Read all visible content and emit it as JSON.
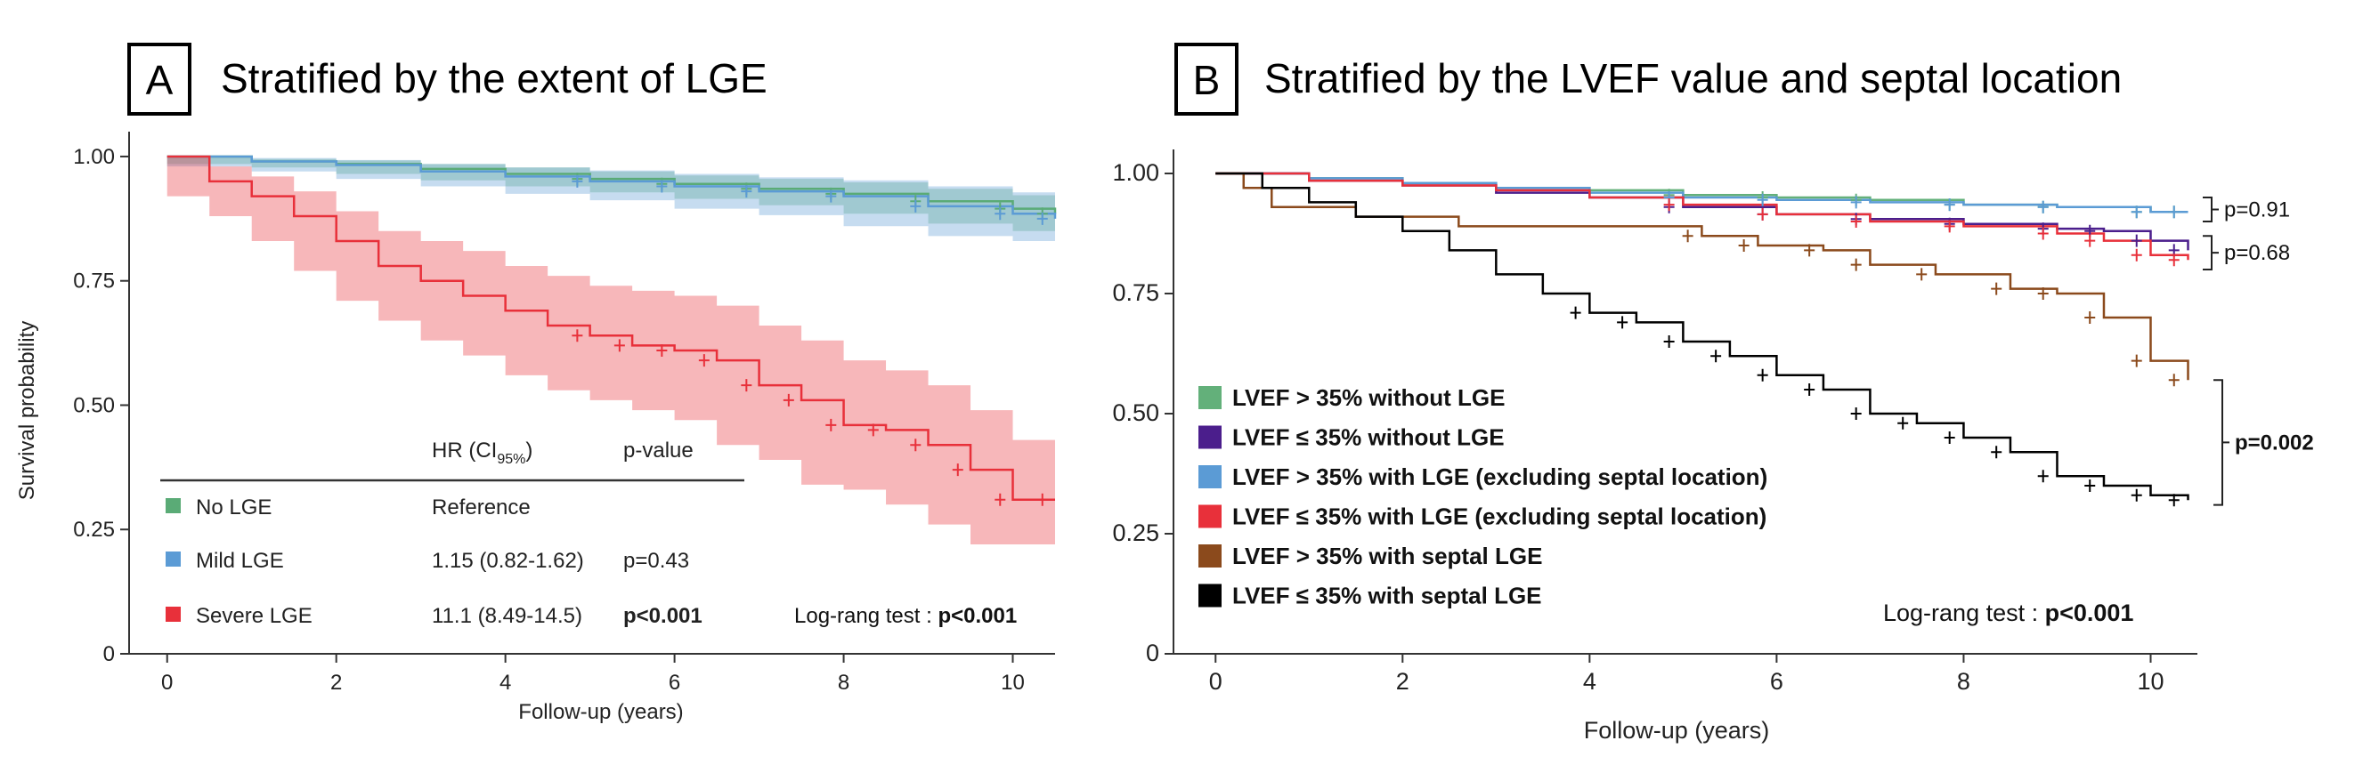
{
  "panels": {
    "a": {
      "letter": "A",
      "title": "Stratified by the extent of LGE"
    },
    "b": {
      "letter": "B",
      "title": "Stratified by the LVEF value and septal location"
    }
  },
  "colors": {
    "no_lge": "#5aab76",
    "mild_lge": "#5b9bd5",
    "severe_lge": "#e8303a",
    "lvef_gt35_no": "#63b07a",
    "lvef_le35_no": "#4b1e8c",
    "lvef_gt35_lge": "#5b9bd5",
    "lvef_le35_lge": "#e8303a",
    "lvef_gt35_septal": "#8b4a1c",
    "lvef_le35_septal": "#000000"
  },
  "chart_data": [
    {
      "type": "line",
      "subtype": "kaplan-meier",
      "title": "Stratified by the extent of LGE",
      "xlabel": "Follow-up  (years)",
      "ylabel": "Survival probability",
      "xlim": [
        -0.45,
        10.5
      ],
      "ylim": [
        0,
        1.05
      ],
      "x_ticks": [
        0,
        2,
        4,
        6,
        8,
        10
      ],
      "y_ticks": [
        0,
        0.25,
        0.5,
        0.75,
        1.0
      ],
      "y_tick_labels": [
        "0",
        "0.25",
        "0.50",
        "0.75",
        "1.00"
      ],
      "grid": false,
      "series": [
        {
          "name": "No  LGE",
          "color_key": "no_lge",
          "x": [
            0,
            1,
            2,
            3,
            4,
            5,
            6,
            7,
            8,
            9,
            10,
            10.5
          ],
          "y": [
            1.0,
            0.99,
            0.985,
            0.975,
            0.965,
            0.955,
            0.945,
            0.935,
            0.925,
            0.91,
            0.895,
            0.885
          ],
          "ci_low": [
            1.0,
            0.985,
            0.978,
            0.965,
            0.952,
            0.94,
            0.928,
            0.915,
            0.902,
            0.885,
            0.865,
            0.85
          ],
          "ci_high": [
            1.0,
            0.995,
            0.992,
            0.985,
            0.978,
            0.97,
            0.962,
            0.955,
            0.948,
            0.935,
            0.922,
            0.915
          ]
        },
        {
          "name": "Mild LGE",
          "color_key": "mild_lge",
          "x": [
            0,
            1,
            2,
            3,
            4,
            5,
            6,
            7,
            8,
            9,
            10,
            10.5
          ],
          "y": [
            1.0,
            0.99,
            0.983,
            0.97,
            0.96,
            0.95,
            0.94,
            0.93,
            0.92,
            0.9,
            0.885,
            0.875
          ],
          "ci_low": [
            1.0,
            0.98,
            0.97,
            0.955,
            0.94,
            0.925,
            0.912,
            0.895,
            0.882,
            0.86,
            0.84,
            0.83
          ],
          "ci_high": [
            1.0,
            0.997,
            0.993,
            0.985,
            0.978,
            0.972,
            0.965,
            0.958,
            0.952,
            0.94,
            0.928,
            0.92
          ]
        },
        {
          "name": "Severe LGE",
          "color_key": "severe_lge",
          "x": [
            0,
            0.5,
            1,
            1.5,
            2,
            2.5,
            3,
            3.5,
            4,
            4.5,
            5,
            5.5,
            6,
            6.5,
            7,
            7.5,
            8,
            8.5,
            9,
            9.5,
            10,
            10.5
          ],
          "y": [
            1.0,
            0.95,
            0.92,
            0.88,
            0.83,
            0.78,
            0.75,
            0.72,
            0.69,
            0.66,
            0.64,
            0.62,
            0.61,
            0.59,
            0.54,
            0.51,
            0.46,
            0.45,
            0.42,
            0.37,
            0.31,
            0.31
          ],
          "ci_low": [
            1.0,
            0.92,
            0.88,
            0.83,
            0.77,
            0.71,
            0.67,
            0.63,
            0.6,
            0.56,
            0.53,
            0.51,
            0.49,
            0.47,
            0.42,
            0.39,
            0.34,
            0.33,
            0.3,
            0.26,
            0.22,
            0.22
          ],
          "ci_high": [
            1.0,
            0.98,
            0.96,
            0.93,
            0.89,
            0.85,
            0.83,
            0.81,
            0.78,
            0.76,
            0.74,
            0.73,
            0.72,
            0.7,
            0.66,
            0.63,
            0.59,
            0.57,
            0.54,
            0.49,
            0.43,
            0.43
          ]
        }
      ],
      "table": {
        "header": [
          "",
          "HR (CI95%)",
          "p-value"
        ],
        "rows": [
          {
            "group": "No  LGE",
            "hr": "Reference",
            "p": "",
            "color_key": "no_lge"
          },
          {
            "group": "Mild LGE",
            "hr": "1.15 (0.82-1.62)",
            "p": "p=0.43",
            "color_key": "mild_lge"
          },
          {
            "group": "Severe LGE",
            "hr": "11.1 (8.49-14.5)",
            "p": "p<0.001",
            "color_key": "severe_lge"
          }
        ]
      },
      "test_note": {
        "label": "Log-rang test : ",
        "value": "p<0.001"
      }
    },
    {
      "type": "line",
      "subtype": "kaplan-meier",
      "title": "Stratified by the LVEF value and septal location",
      "xlabel": "Follow-up  (years)",
      "ylabel": "",
      "xlim": [
        -0.45,
        10.5
      ],
      "ylim": [
        0,
        1.05
      ],
      "x_ticks": [
        0,
        2,
        4,
        6,
        8,
        10
      ],
      "y_ticks": [
        0,
        0.25,
        0.5,
        0.75,
        1.0
      ],
      "y_tick_labels": [
        "0",
        "0.25",
        "0.50",
        "0.75",
        "1.00"
      ],
      "grid": false,
      "series": [
        {
          "name": "LVEF > 35% without  LGE",
          "color_key": "lvef_gt35_no",
          "x": [
            0,
            1,
            2,
            3,
            4,
            5,
            6,
            7,
            8,
            9,
            10,
            10.4
          ],
          "y": [
            1.0,
            0.99,
            0.98,
            0.97,
            0.965,
            0.955,
            0.95,
            0.945,
            0.935,
            0.93,
            0.92,
            0.92
          ]
        },
        {
          "name": "LVEF ≤ 35% without  LGE",
          "color_key": "lvef_le35_no",
          "x": [
            0,
            1,
            2,
            3,
            4,
            5,
            6,
            7,
            8,
            9,
            9.5,
            10,
            10.4
          ],
          "y": [
            1.0,
            0.985,
            0.975,
            0.96,
            0.95,
            0.93,
            0.915,
            0.905,
            0.895,
            0.885,
            0.88,
            0.86,
            0.84
          ]
        },
        {
          "name": "LVEF > 35% with  LGE (excluding septal location)",
          "color_key": "lvef_gt35_lge",
          "x": [
            0,
            1,
            2,
            3,
            4,
            5,
            6,
            7,
            8,
            9,
            10,
            10.4
          ],
          "y": [
            1.0,
            0.99,
            0.98,
            0.97,
            0.96,
            0.95,
            0.945,
            0.94,
            0.935,
            0.93,
            0.92,
            0.92
          ]
        },
        {
          "name": "LVEF ≤ 35% with  LGE (excluding septal location)",
          "color_key": "lvef_le35_lge",
          "x": [
            0,
            1,
            2,
            3,
            4,
            5,
            6,
            7,
            8,
            9,
            9.5,
            10,
            10.4
          ],
          "y": [
            1.0,
            0.985,
            0.975,
            0.965,
            0.95,
            0.935,
            0.915,
            0.9,
            0.89,
            0.875,
            0.86,
            0.83,
            0.82
          ]
        },
        {
          "name": "LVEF > 35% with septal LGE",
          "color_key": "lvef_gt35_septal",
          "x": [
            0,
            0.3,
            0.6,
            1.5,
            2.6,
            3.5,
            4.5,
            5.2,
            5.8,
            6.5,
            7.0,
            7.7,
            8.5,
            9.0,
            9.5,
            10.0,
            10.4
          ],
          "y": [
            1.0,
            0.97,
            0.93,
            0.91,
            0.89,
            0.89,
            0.89,
            0.87,
            0.85,
            0.84,
            0.81,
            0.79,
            0.76,
            0.75,
            0.7,
            0.61,
            0.57
          ]
        },
        {
          "name": "LVEF ≤ 35% with septal LGE",
          "color_key": "lvef_le35_septal",
          "x": [
            0,
            0.5,
            1,
            1.5,
            2,
            2.5,
            3,
            3.5,
            4,
            4.5,
            5,
            5.5,
            6,
            6.5,
            7,
            7.5,
            8,
            8.5,
            9,
            9.5,
            10,
            10.4
          ],
          "y": [
            1.0,
            0.97,
            0.94,
            0.91,
            0.88,
            0.84,
            0.79,
            0.75,
            0.71,
            0.69,
            0.65,
            0.62,
            0.58,
            0.55,
            0.5,
            0.48,
            0.45,
            0.42,
            0.37,
            0.35,
            0.33,
            0.32
          ]
        }
      ],
      "comparisons": [
        {
          "label": "p=0.91",
          "bold": false,
          "y_range": [
            0.9,
            0.95
          ]
        },
        {
          "label": "p=0.68",
          "bold": false,
          "y_range": [
            0.8,
            0.87
          ]
        },
        {
          "label": "p=0.002",
          "bold": true,
          "y_range": [
            0.31,
            0.57
          ]
        }
      ],
      "test_note": {
        "label": "Log-rang test : ",
        "value": "p<0.001"
      }
    }
  ]
}
